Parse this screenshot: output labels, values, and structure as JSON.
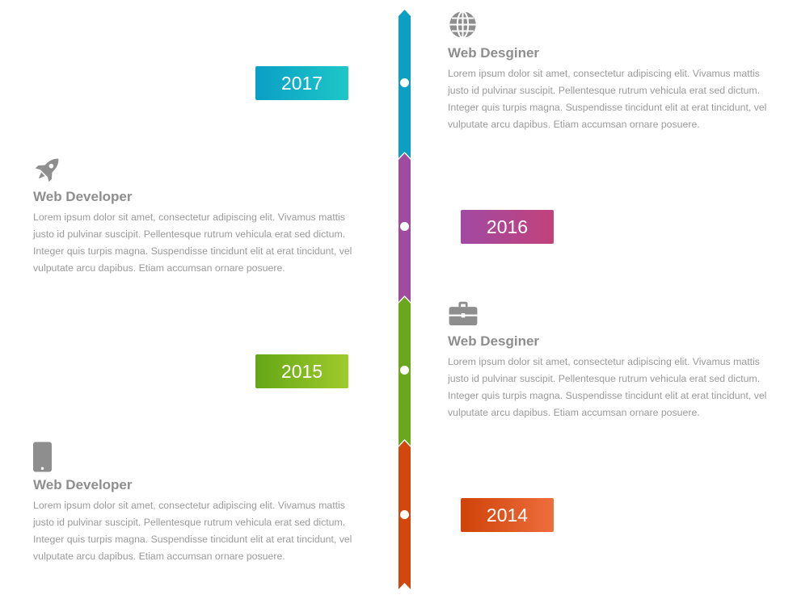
{
  "colors": {
    "2017": [
      "#0a9fc6",
      "#1ec7c7"
    ],
    "2016": [
      "#a14aa3",
      "#c1427a"
    ],
    "2015": [
      "#65a616",
      "#9fcb2c"
    ],
    "2014": [
      "#cf4309",
      "#ee6e3c"
    ],
    "icon": "#8e8e8e"
  },
  "entries": [
    {
      "year": "2017",
      "icon": "globe-icon",
      "title": "Web Desginer",
      "text": "Lorem ipsum dolor sit amet, consectetur adipiscing elit. Vivamus mattis justo id pulvinar suscipit. Pellentesque rutrum vehicula erat sed dictum. Integer quis turpis magna. Suspendisse tincidunt elit at erat tincidunt, vel vulputate arcu dapibus. Etiam accumsan ornare posuere."
    },
    {
      "year": "2016",
      "icon": "rocket-icon",
      "title": "Web Developer",
      "text": "Lorem ipsum dolor sit amet, consectetur adipiscing elit. Vivamus mattis justo id pulvinar suscipit. Pellentesque rutrum vehicula erat sed dictum. Integer quis turpis magna. Suspendisse tincidunt elit at erat tincidunt, vel vulputate arcu dapibus. Etiam accumsan ornare posuere."
    },
    {
      "year": "2015",
      "icon": "briefcase-icon",
      "title": "Web Desginer",
      "text": "Lorem ipsum dolor sit amet, consectetur adipiscing elit. Vivamus mattis justo id pulvinar suscipit. Pellentesque rutrum vehicula erat sed dictum. Integer quis turpis magna. Suspendisse tincidunt elit at erat tincidunt, vel vulputate arcu dapibus. Etiam accumsan ornare posuere."
    },
    {
      "year": "2014",
      "icon": "mobile-phone-icon",
      "title": "Web Developer",
      "text": "Lorem ipsum dolor sit amet, consectetur adipiscing elit. Vivamus mattis justo id pulvinar suscipit. Pellentesque rutrum vehicula erat sed dictum. Integer quis turpis magna. Suspendisse tincidunt elit at erat tincidunt, vel vulputate arcu dapibus. Etiam accumsan ornare posuere."
    }
  ]
}
